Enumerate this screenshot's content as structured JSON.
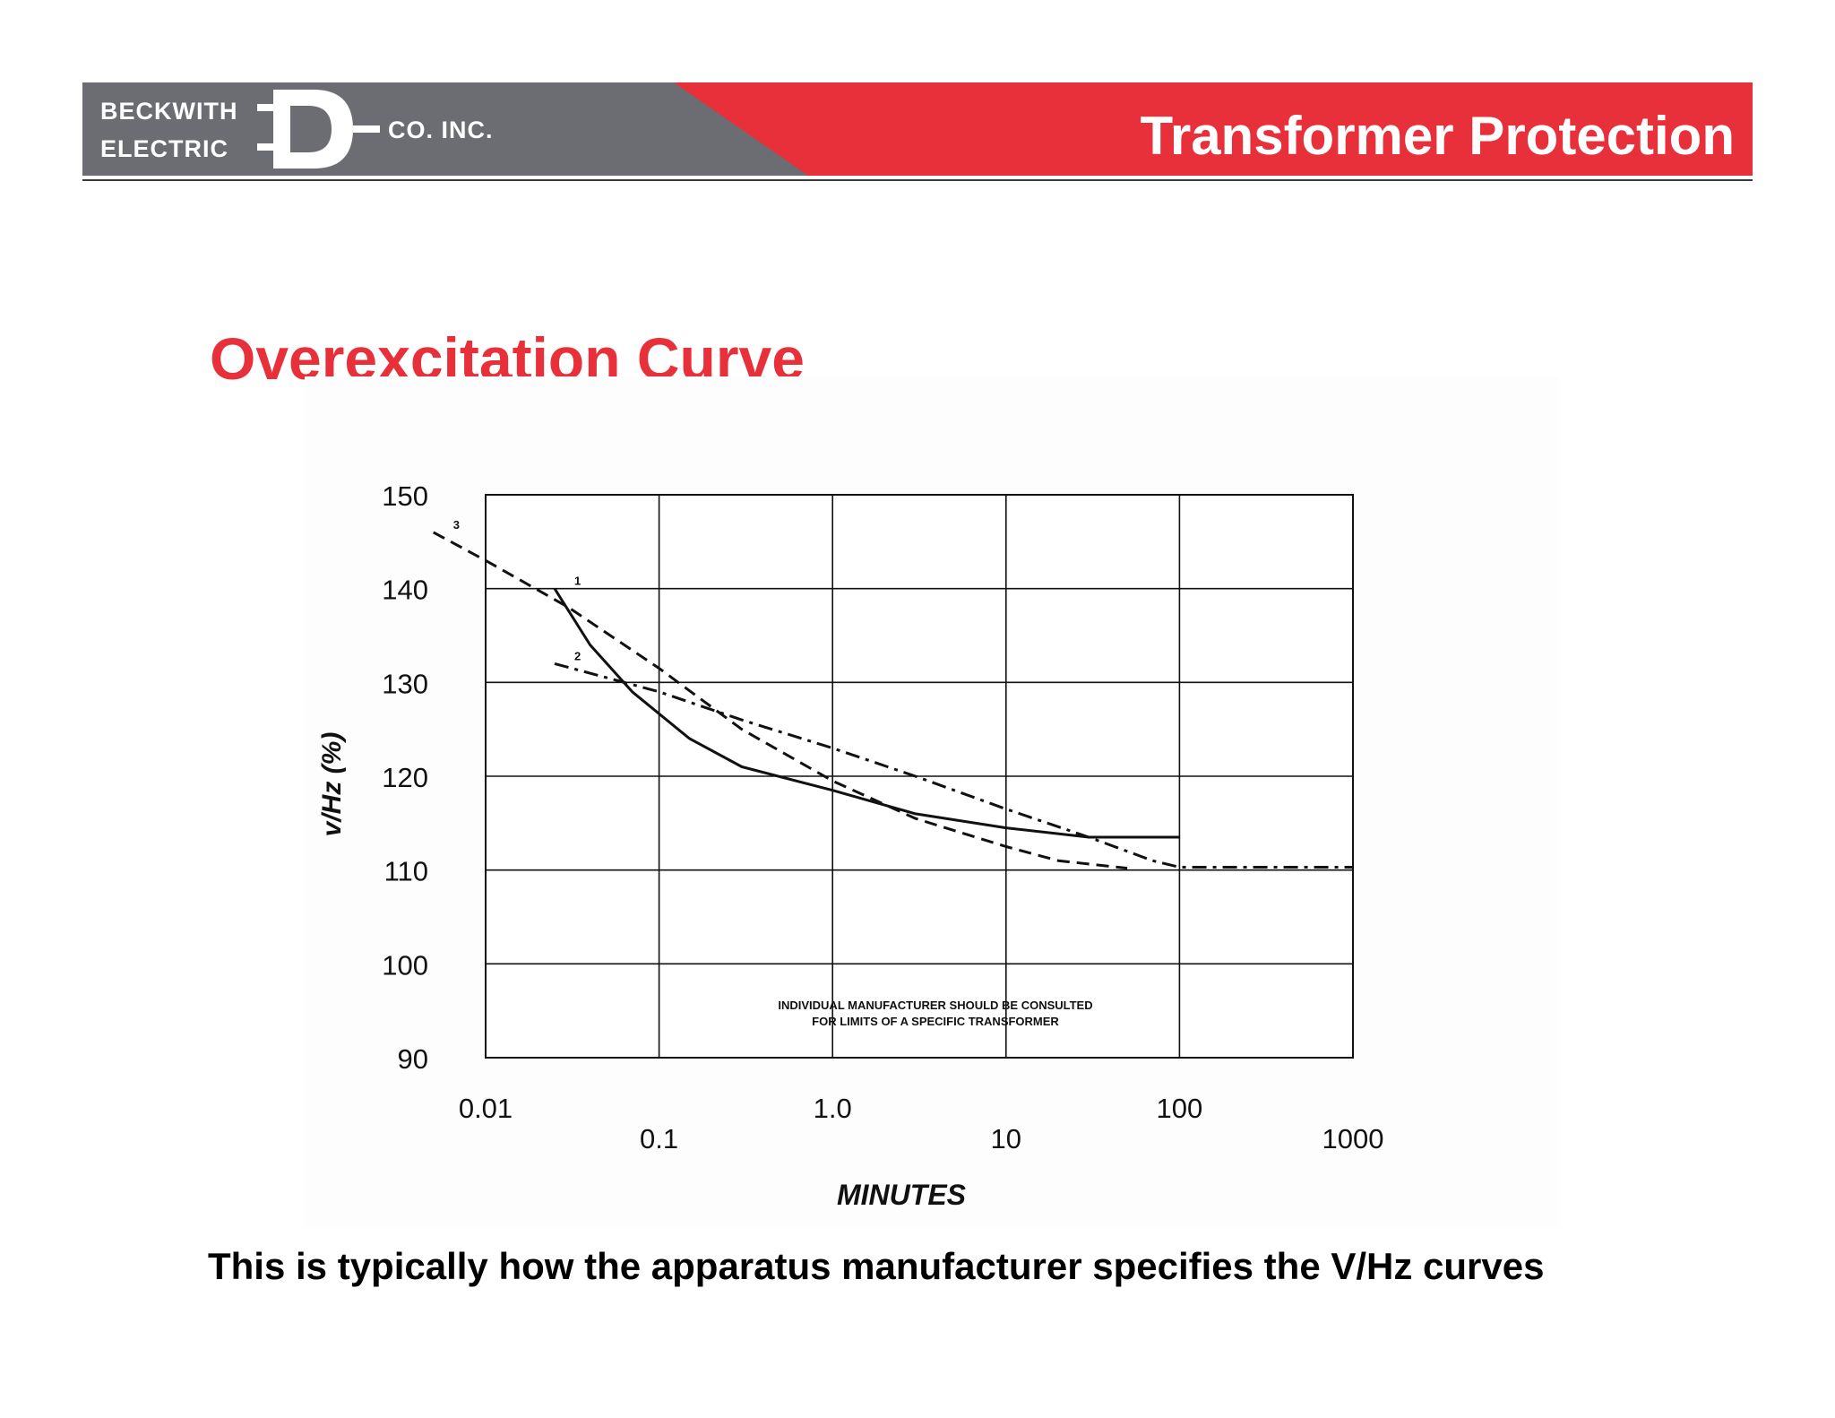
{
  "header": {
    "company_line1": "BECKWITH",
    "company_line2": "ELECTRIC",
    "company_suffix": "CO. INC.",
    "title": "Transformer Protection",
    "accent_color": "#e8303a",
    "gray_color": "#6b6d72"
  },
  "slide": {
    "title": "Overexcitation Curve",
    "caption": "This is typically how the apparatus manufacturer specifies the V/Hz curves"
  },
  "chart_data": {
    "type": "line",
    "title": "",
    "xlabel": "MINUTES",
    "ylabel": "v/Hz (%)",
    "x_scale": "log",
    "xlim": [
      0.01,
      1000
    ],
    "ylim": [
      90,
      150
    ],
    "grid": true,
    "legend": "none",
    "x_tick_labels": [
      "0.01",
      "0.1",
      "1.0",
      "10",
      "100",
      "1000"
    ],
    "y_tick_labels": [
      "150",
      "140",
      "130",
      "120",
      "110",
      "100",
      "90"
    ],
    "note_lines": [
      "INDIVIDUAL MANUFACTURER SHOULD BE CONSULTED",
      "FOR LIMITS OF A SPECIFIC TRANSFORMER"
    ],
    "series": [
      {
        "name": "1",
        "style": "solid",
        "points": [
          [
            0.025,
            140
          ],
          [
            0.04,
            134
          ],
          [
            0.07,
            129
          ],
          [
            0.15,
            124
          ],
          [
            0.3,
            121
          ],
          [
            1,
            118.5
          ],
          [
            3,
            116
          ],
          [
            10,
            114.5
          ],
          [
            30,
            113.5
          ],
          [
            100,
            113.5
          ]
        ]
      },
      {
        "name": "2",
        "style": "dash-dot",
        "points": [
          [
            0.025,
            132
          ],
          [
            0.1,
            129
          ],
          [
            0.3,
            126
          ],
          [
            1,
            123
          ],
          [
            3,
            120
          ],
          [
            10,
            116.5
          ],
          [
            30,
            113.5
          ],
          [
            70,
            111
          ],
          [
            100,
            110.3
          ],
          [
            1000,
            110.3
          ]
        ]
      },
      {
        "name": "3",
        "style": "dashed",
        "points": [
          [
            0.005,
            146
          ],
          [
            0.01,
            143
          ],
          [
            0.03,
            138
          ],
          [
            0.1,
            131.5
          ],
          [
            0.3,
            125
          ],
          [
            1,
            119.5
          ],
          [
            3,
            115.5
          ],
          [
            10,
            112.5
          ],
          [
            20,
            111
          ],
          [
            50,
            110.2
          ]
        ]
      }
    ]
  }
}
